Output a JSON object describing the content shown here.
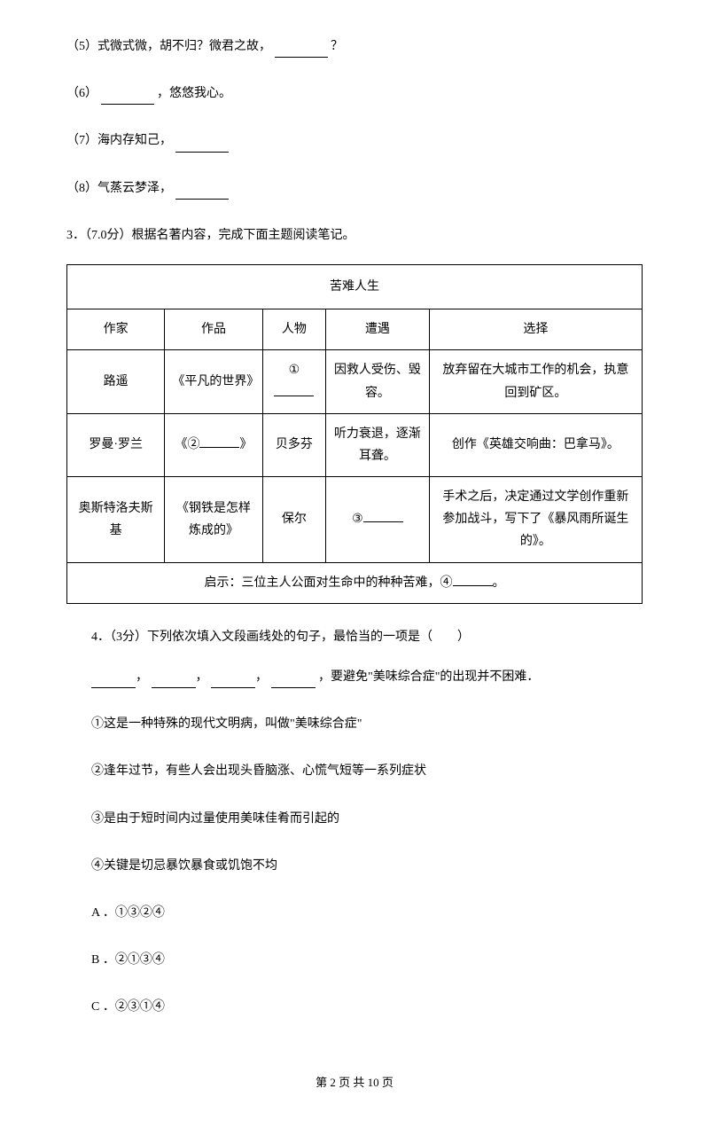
{
  "q5": {
    "label": "（5）式微式微，胡不归？微君之故，",
    "suffix": "？"
  },
  "q6": {
    "prefix": "（6）",
    "suffix": "，悠悠我心。"
  },
  "q7": {
    "text": "（7）海内存知己，"
  },
  "q8": {
    "text": "（8）气蒸云梦泽，"
  },
  "q3": {
    "header": "3．（7.0分）根据名著内容，完成下面主题阅读笔记。",
    "table": {
      "title": "苦难人生",
      "headers": {
        "author": "作家",
        "work": "作品",
        "person": "人物",
        "encounter": "遭遇",
        "choice": "选择"
      },
      "rows": [
        {
          "author": "路遥",
          "work": "《平凡的世界》",
          "person_prefix": "①",
          "encounter": "因救人受伤、毁容。",
          "choice": "放弃留在大城市工作的机会，执意回到矿区。"
        },
        {
          "author": "罗曼·罗兰",
          "work_prefix": "《②",
          "work_suffix": "》",
          "person": "贝多芬",
          "encounter": "听力衰退，逐渐耳聋。",
          "choice": "创作《英雄交响曲：巴拿马》。"
        },
        {
          "author": "奥斯特洛夫斯基",
          "work": "《钢铁是怎样炼成的》",
          "person": "保尔",
          "encounter_prefix": "③",
          "choice": "手术之后，决定通过文学创作重新参加战斗，写下了《暴风雨所诞生的》。"
        }
      ],
      "footer_prefix": "启示：三位主人公面对生命中的种种苦难，④",
      "footer_suffix": "。"
    }
  },
  "q4": {
    "header": "4．（3分）下列依次填入文段画线处的句子，最恰当的一项是（　　）",
    "blank_sentence": "，要避免\"美味综合症\"的出现并不困难．",
    "options": {
      "opt1": "①这是一种特殊的现代文明病，叫做\"美味综合症\"",
      "opt2": "②逢年过节，有些人会出现头昏脑涨、心慌气短等一系列症状",
      "opt3": "③是由于短时间内过量使用美味佳肴而引起的",
      "opt4": "④关键是切忌暴饮暴食或饥饱不均"
    },
    "choices": {
      "a": "A ．①③②④",
      "b": "B ．②①③④",
      "c": "C ．②③①④"
    }
  },
  "footer": {
    "text": "第 2 页 共 10 页"
  }
}
